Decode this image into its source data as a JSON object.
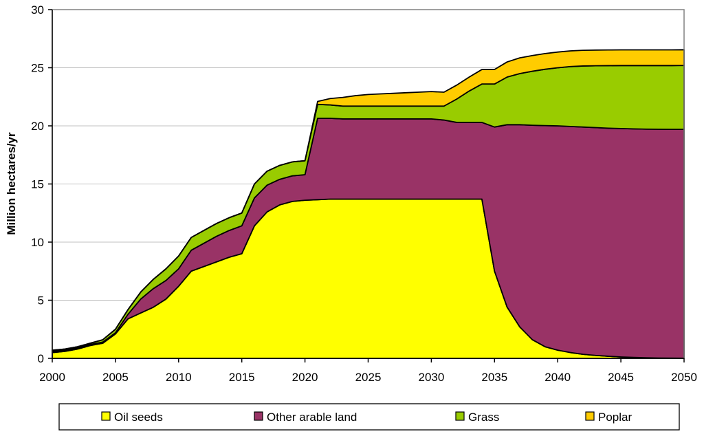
{
  "chart_data": {
    "type": "area",
    "stacked": true,
    "title": "",
    "xlabel": "",
    "ylabel": "Million hectares/yr",
    "xlim": [
      2000,
      2050
    ],
    "ylim": [
      0,
      30
    ],
    "x_ticks": [
      2000,
      2005,
      2010,
      2015,
      2020,
      2025,
      2030,
      2035,
      2040,
      2045,
      2050
    ],
    "y_ticks": [
      0,
      5,
      10,
      15,
      20,
      25,
      30
    ],
    "grid": "horizontal",
    "legend_position": "bottom",
    "x": [
      2000,
      2001,
      2002,
      2003,
      2004,
      2005,
      2006,
      2007,
      2008,
      2009,
      2010,
      2011,
      2012,
      2013,
      2014,
      2015,
      2016,
      2017,
      2018,
      2019,
      2020,
      2021,
      2022,
      2023,
      2024,
      2025,
      2026,
      2027,
      2028,
      2029,
      2030,
      2031,
      2032,
      2033,
      2034,
      2035,
      2036,
      2037,
      2038,
      2039,
      2040,
      2041,
      2042,
      2043,
      2044,
      2045,
      2046,
      2047,
      2048,
      2049,
      2050
    ],
    "series": [
      {
        "name": "Oil seeds",
        "color": "#FFFF00",
        "values": [
          0.5,
          0.6,
          0.8,
          1.1,
          1.3,
          2.1,
          3.4,
          3.9,
          4.4,
          5.1,
          6.2,
          7.5,
          7.9,
          8.3,
          8.7,
          9.0,
          11.4,
          12.6,
          13.2,
          13.5,
          13.6,
          13.65,
          13.7,
          13.7,
          13.7,
          13.7,
          13.7,
          13.7,
          13.7,
          13.7,
          13.7,
          13.7,
          13.7,
          13.7,
          13.7,
          7.5,
          4.4,
          2.7,
          1.6,
          1.0,
          0.7,
          0.5,
          0.35,
          0.25,
          0.18,
          0.12,
          0.08,
          0.05,
          0.03,
          0.02,
          0.01
        ]
      },
      {
        "name": "Other arable land",
        "color": "#993366",
        "values": [
          0.1,
          0.1,
          0.1,
          0.1,
          0.1,
          0.1,
          0.4,
          1.2,
          1.6,
          1.6,
          1.5,
          1.8,
          2.0,
          2.2,
          2.3,
          2.4,
          2.4,
          2.3,
          2.2,
          2.2,
          2.2,
          7.0,
          6.95,
          6.9,
          6.9,
          6.9,
          6.9,
          6.9,
          6.9,
          6.9,
          6.9,
          6.8,
          6.6,
          6.6,
          6.6,
          12.4,
          15.7,
          17.4,
          18.45,
          19.02,
          19.3,
          19.45,
          19.55,
          19.6,
          19.62,
          19.65,
          19.66,
          19.67,
          19.68,
          19.68,
          19.69
        ]
      },
      {
        "name": "Grass",
        "color": "#99CC00",
        "values": [
          0.1,
          0.1,
          0.1,
          0.1,
          0.2,
          0.3,
          0.4,
          0.6,
          0.8,
          1.0,
          1.1,
          1.1,
          1.1,
          1.1,
          1.1,
          1.1,
          1.2,
          1.2,
          1.2,
          1.2,
          1.2,
          1.2,
          1.15,
          1.1,
          1.1,
          1.1,
          1.1,
          1.1,
          1.1,
          1.1,
          1.1,
          1.2,
          2.0,
          2.7,
          3.3,
          3.7,
          4.1,
          4.4,
          4.65,
          4.85,
          5.0,
          5.15,
          5.25,
          5.32,
          5.38,
          5.42,
          5.45,
          5.47,
          5.48,
          5.49,
          5.5
        ]
      },
      {
        "name": "Poplar",
        "color": "#FFCC00",
        "values": [
          0,
          0,
          0,
          0,
          0,
          0,
          0,
          0,
          0,
          0,
          0,
          0,
          0,
          0,
          0,
          0,
          0,
          0,
          0,
          0,
          0,
          0.25,
          0.55,
          0.75,
          0.9,
          1.0,
          1.05,
          1.1,
          1.15,
          1.2,
          1.25,
          1.2,
          1.2,
          1.2,
          1.25,
          1.25,
          1.3,
          1.35,
          1.35,
          1.35,
          1.35,
          1.35,
          1.35,
          1.35,
          1.35,
          1.35,
          1.35,
          1.35,
          1.35,
          1.35,
          1.35
        ]
      }
    ]
  }
}
